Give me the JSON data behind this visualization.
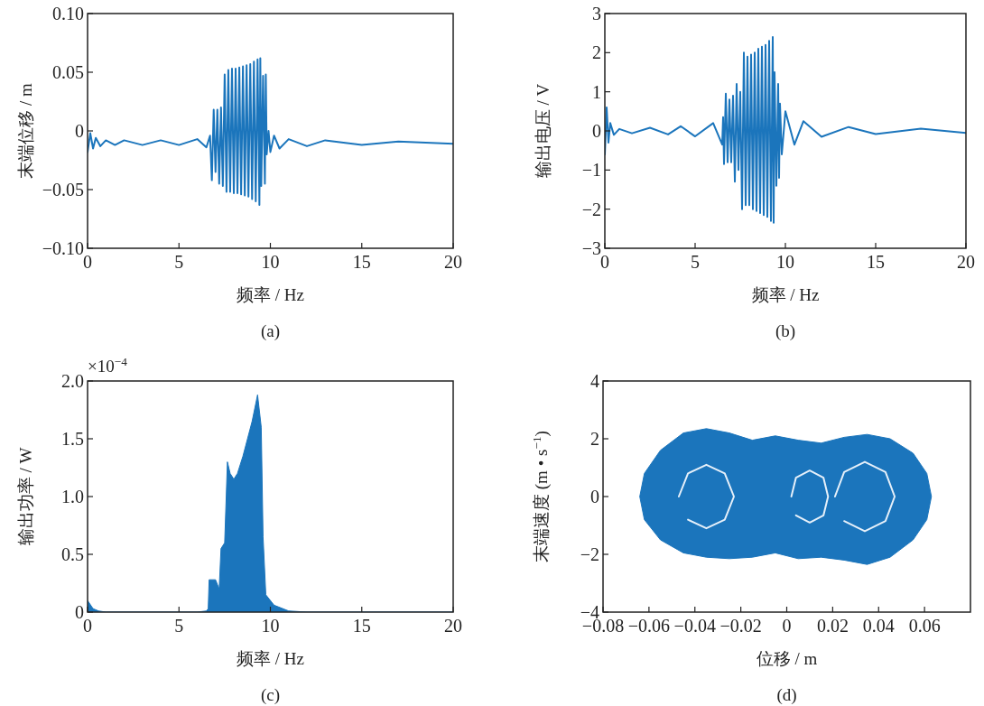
{
  "chart_data": [
    {
      "type": "line",
      "title": "(a)",
      "xlabel": "频率 / Hz",
      "ylabel": "末端位移 / m",
      "xlim": [
        0,
        20
      ],
      "ylim": [
        -0.1,
        0.1
      ],
      "xticks": [
        0,
        5,
        10,
        15,
        20
      ],
      "yticks": [
        {
          "value": -0.1,
          "label": "−0.10"
        },
        {
          "value": -0.05,
          "label": "−0.05"
        },
        0,
        {
          "value": 0.05,
          "label": "0.05"
        },
        {
          "value": 0.1,
          "label": "0.10"
        }
      ],
      "x": [
        0,
        0.15,
        0.3,
        0.45,
        0.7,
        1.0,
        1.5,
        2.0,
        3.0,
        4.0,
        5.0,
        6.0,
        6.5,
        6.7,
        6.8,
        6.9,
        7.0,
        7.1,
        7.2,
        7.3,
        7.4,
        7.5,
        7.6,
        7.7,
        7.8,
        7.9,
        8.0,
        8.1,
        8.2,
        8.3,
        8.4,
        8.5,
        8.6,
        8.7,
        8.8,
        8.9,
        9.0,
        9.1,
        9.2,
        9.3,
        9.4,
        9.45,
        9.5,
        9.6,
        9.7,
        9.75,
        9.8,
        9.9,
        10.0,
        10.2,
        10.5,
        11,
        12,
        13,
        15,
        17,
        20
      ],
      "series": [
        {
          "color": "#1b75bc",
          "values": [
            -0.018,
            -0.002,
            -0.015,
            -0.006,
            -0.013,
            -0.008,
            -0.012,
            -0.008,
            -0.012,
            -0.008,
            -0.012,
            -0.007,
            -0.014,
            -0.004,
            -0.042,
            0.018,
            -0.035,
            0.018,
            -0.045,
            0.02,
            -0.047,
            0.048,
            -0.052,
            0.052,
            -0.052,
            0.053,
            -0.053,
            0.053,
            -0.053,
            0.054,
            -0.054,
            0.055,
            -0.055,
            0.056,
            -0.056,
            0.057,
            -0.058,
            0.059,
            -0.06,
            0.061,
            -0.063,
            0.062,
            -0.047,
            0.047,
            -0.045,
            0.048,
            -0.02,
            0.0,
            -0.018,
            -0.004,
            -0.015,
            -0.007,
            -0.013,
            -0.008,
            -0.012,
            -0.009,
            -0.011
          ]
        }
      ]
    },
    {
      "type": "line",
      "title": "(b)",
      "xlabel": "频率 / Hz",
      "ylabel": "输出电压 / V",
      "xlim": [
        0,
        20
      ],
      "ylim": [
        -3,
        3
      ],
      "xticks": [
        0,
        5,
        10,
        15,
        20
      ],
      "yticks": [
        {
          "value": -3,
          "label": "−3"
        },
        {
          "value": -2,
          "label": "−2"
        },
        {
          "value": -1,
          "label": "−1"
        },
        0,
        1,
        2,
        3
      ],
      "x": [
        0,
        0.1,
        0.2,
        0.3,
        0.5,
        0.8,
        1.5,
        2.5,
        3.5,
        4.2,
        5,
        6,
        6.5,
        6.55,
        6.6,
        6.7,
        6.8,
        6.9,
        7.0,
        7.1,
        7.2,
        7.3,
        7.4,
        7.5,
        7.6,
        7.7,
        7.8,
        7.9,
        8.0,
        8.1,
        8.2,
        8.3,
        8.4,
        8.5,
        8.6,
        8.7,
        8.8,
        8.9,
        9.0,
        9.1,
        9.2,
        9.3,
        9.35,
        9.4,
        9.5,
        9.6,
        9.65,
        9.7,
        9.8,
        10.0,
        10.5,
        11,
        12,
        13.5,
        15,
        17.5,
        20
      ],
      "series": [
        {
          "color": "#1b75bc",
          "values": [
            -0.6,
            0.6,
            -0.3,
            0.2,
            -0.1,
            0.05,
            -0.06,
            0.08,
            -0.09,
            0.12,
            -0.14,
            0.2,
            -0.35,
            0.35,
            -0.85,
            0.95,
            -0.8,
            0.8,
            -0.8,
            0.9,
            -1.3,
            1.2,
            -1.0,
            1.0,
            -2.0,
            2.0,
            -1.9,
            1.9,
            -1.9,
            1.95,
            -2.0,
            2.0,
            -2.05,
            2.1,
            -2.1,
            2.15,
            -2.15,
            2.2,
            -2.2,
            2.3,
            -2.3,
            2.4,
            -2.35,
            1.5,
            -1.4,
            1.2,
            -1.2,
            0.7,
            -0.6,
            0.5,
            -0.35,
            0.25,
            -0.15,
            0.1,
            -0.08,
            0.06,
            -0.05
          ]
        }
      ]
    },
    {
      "type": "area",
      "title": "(c)",
      "xlabel": "频率 / Hz",
      "ylabel": "输出功率 / W",
      "annotations": [
        "×10$^{−4}$"
      ],
      "xlim": [
        0,
        20
      ],
      "ylim": [
        0,
        2.0
      ],
      "xticks": [
        0,
        5,
        10,
        15,
        20
      ],
      "yticks": [
        0,
        {
          "value": 0.5,
          "label": "0.5"
        },
        {
          "value": 1,
          "label": "1.0"
        },
        {
          "value": 1.5,
          "label": "1.5"
        },
        {
          "value": 2,
          "label": "2.0"
        }
      ],
      "x": [
        0,
        0.3,
        0.6,
        1,
        6,
        6.5,
        6.6,
        6.65,
        7.0,
        7.2,
        7.3,
        7.5,
        7.65,
        7.8,
        8.0,
        8.2,
        8.5,
        9.0,
        9.3,
        9.5,
        9.6,
        9.75,
        10.2,
        11,
        12,
        20
      ],
      "series": [
        {
          "color": "#1b75bc",
          "values": [
            0.1,
            0.03,
            0.01,
            0,
            0,
            0.01,
            0.03,
            0.28,
            0.28,
            0.2,
            0.55,
            0.6,
            1.3,
            1.2,
            1.15,
            1.2,
            1.35,
            1.65,
            1.88,
            1.6,
            0.65,
            0.15,
            0.06,
            0.01,
            0,
            0
          ]
        }
      ]
    },
    {
      "type": "area",
      "title": "(d)",
      "xlabel": "位移 / m",
      "ylabel": "末端速度 (m • s$^{−1}$)",
      "xlim": [
        -0.08,
        0.08
      ],
      "ylim": [
        -4,
        4
      ],
      "xticks": [
        {
          "value": -0.08,
          "label": "−0.08"
        },
        {
          "value": -0.06,
          "label": "−0.06"
        },
        {
          "value": -0.04,
          "label": "−0.04"
        },
        {
          "value": -0.02,
          "label": "−0.02"
        },
        0,
        {
          "value": 0.02,
          "label": "0.02"
        },
        {
          "value": 0.04,
          "label": "0.04"
        },
        {
          "value": 0.06,
          "label": "0.06"
        }
      ],
      "yticks": [
        {
          "value": -4,
          "label": "−4"
        },
        {
          "value": -2,
          "label": "−2"
        },
        0,
        2,
        4
      ],
      "series": [
        {
          "color": "#1b75bc",
          "x": [
            -0.064,
            -0.062,
            -0.055,
            -0.045,
            -0.035,
            -0.025,
            -0.015,
            -0.005,
            0.005,
            0.015,
            0.025,
            0.035,
            0.045,
            0.055,
            0.061,
            0.063,
            0.061,
            0.055,
            0.045,
            0.035,
            0.025,
            0.015,
            0.005,
            -0.005,
            -0.015,
            -0.025,
            -0.035,
            -0.045,
            -0.055,
            -0.062,
            -0.064
          ],
          "values": [
            0,
            0.8,
            1.6,
            2.2,
            2.35,
            2.2,
            1.95,
            2.1,
            1.95,
            1.85,
            2.05,
            2.15,
            2.0,
            1.5,
            0.8,
            0,
            -0.8,
            -1.5,
            -2.1,
            -2.35,
            -2.2,
            -2.1,
            -2.15,
            -1.95,
            -2.1,
            -2.15,
            -2.1,
            -1.95,
            -1.5,
            -0.8,
            0
          ]
        },
        {
          "type": "line",
          "color": "#e6f0fa",
          "x": [
            -0.047,
            -0.043,
            -0.035,
            -0.027,
            -0.023,
            -0.027,
            -0.035,
            -0.043
          ],
          "values": [
            0,
            0.8,
            1.1,
            0.8,
            0,
            -0.8,
            -1.1,
            -0.8
          ]
        },
        {
          "type": "line",
          "color": "#e6f0fa",
          "x": [
            0.002,
            0.004,
            0.01,
            0.016,
            0.018,
            0.016,
            0.01,
            0.004
          ],
          "values": [
            0,
            0.65,
            0.9,
            0.65,
            0,
            -0.65,
            -0.9,
            -0.65
          ]
        },
        {
          "type": "line",
          "color": "#e6f0fa",
          "x": [
            0.021,
            0.025,
            0.034,
            0.043,
            0.047,
            0.043,
            0.034,
            0.025
          ],
          "values": [
            0,
            0.85,
            1.2,
            0.85,
            0,
            -0.85,
            -1.2,
            -0.85
          ]
        }
      ]
    }
  ]
}
